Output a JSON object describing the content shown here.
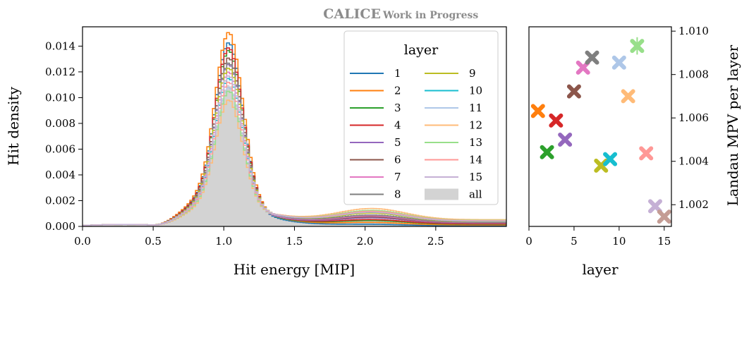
{
  "header": {
    "collab": "CALICE",
    "status": "Work in Progress"
  },
  "chart_data": [
    {
      "type": "histogram",
      "xlabel": "Hit energy [MIP]",
      "ylabel": "Hit density",
      "xlim": [
        0.0,
        3.0
      ],
      "ylim": [
        0.0,
        0.0155
      ],
      "xticks": [
        0.0,
        0.5,
        1.0,
        1.5,
        2.0,
        2.5
      ],
      "xtick_labels": [
        "0.0",
        "0.5",
        "1.0",
        "1.5",
        "2.0",
        "2.5"
      ],
      "yticks": [
        0.0,
        0.002,
        0.004,
        0.006,
        0.008,
        0.01,
        0.012,
        0.014
      ],
      "ytick_labels": [
        "0.000",
        "0.002",
        "0.004",
        "0.006",
        "0.008",
        "0.010",
        "0.012",
        "0.014"
      ],
      "legend": {
        "title": "layer",
        "placement": "top-right",
        "columns": 2,
        "all_label": "all"
      },
      "all": {
        "name": "all",
        "color": "#d3d3d3",
        "peak": 0.011,
        "high_level": 0.00055
      },
      "series": [
        {
          "name": "1",
          "color": "#1f77b4",
          "peak": 0.0143,
          "high_level": 0.0001
        },
        {
          "name": "2",
          "color": "#ff7f0e",
          "peak": 0.0151,
          "high_level": 0.0002
        },
        {
          "name": "3",
          "color": "#2ca02c",
          "peak": 0.0137,
          "high_level": 0.0003
        },
        {
          "name": "4",
          "color": "#d62728",
          "peak": 0.0139,
          "high_level": 0.00035
        },
        {
          "name": "5",
          "color": "#9467bd",
          "peak": 0.0126,
          "high_level": 0.00045
        },
        {
          "name": "6",
          "color": "#8c564b",
          "peak": 0.0131,
          "high_level": 0.0005
        },
        {
          "name": "7",
          "color": "#e377c2",
          "peak": 0.012,
          "high_level": 0.00055
        },
        {
          "name": "8",
          "color": "#7f7f7f",
          "peak": 0.0127,
          "high_level": 0.0006
        },
        {
          "name": "9",
          "color": "#bcbd22",
          "peak": 0.0123,
          "high_level": 0.0007
        },
        {
          "name": "10",
          "color": "#17becf",
          "peak": 0.0115,
          "high_level": 0.00075
        },
        {
          "name": "11",
          "color": "#aec7e8",
          "peak": 0.0108,
          "high_level": 0.0008
        },
        {
          "name": "12",
          "color": "#ffbb78",
          "peak": 0.0098,
          "high_level": 0.00095
        },
        {
          "name": "13",
          "color": "#98df8a",
          "peak": 0.0105,
          "high_level": 0.00085
        },
        {
          "name": "14",
          "color": "#ff9896",
          "peak": 0.0112,
          "high_level": 0.0008
        },
        {
          "name": "15",
          "color": "#c5b0d5",
          "peak": 0.0117,
          "high_level": 0.00075
        }
      ]
    },
    {
      "type": "scatter",
      "xlabel": "layer",
      "ylabel": "Landau MPV per layer",
      "xlim": [
        0,
        15.8
      ],
      "ylim": [
        1.001,
        1.0102
      ],
      "xticks": [
        0,
        5,
        10,
        15
      ],
      "xtick_labels": [
        "0",
        "5",
        "10",
        "15"
      ],
      "yticks": [
        1.002,
        1.004,
        1.006,
        1.008,
        1.01
      ],
      "ytick_labels": [
        "1.002",
        "1.004",
        "1.006",
        "1.008",
        "1.010"
      ],
      "points": [
        {
          "layer": 1,
          "mpv": 1.00632,
          "err": 8e-05,
          "color": "#ff7f0e"
        },
        {
          "layer": 2,
          "mpv": 1.00442,
          "err": 8e-05,
          "color": "#2ca02c"
        },
        {
          "layer": 3,
          "mpv": 1.00588,
          "err": 8e-05,
          "color": "#d62728"
        },
        {
          "layer": 4,
          "mpv": 1.005,
          "err": 8e-05,
          "color": "#9467bd"
        },
        {
          "layer": 5,
          "mpv": 1.00722,
          "err": 8e-05,
          "color": "#8c564b"
        },
        {
          "layer": 6,
          "mpv": 1.00832,
          "err": 0.0001,
          "color": "#e377c2"
        },
        {
          "layer": 7,
          "mpv": 1.00878,
          "err": 0.00015,
          "color": "#7f7f7f"
        },
        {
          "layer": 8,
          "mpv": 1.0038,
          "err": 8e-05,
          "color": "#bcbd22"
        },
        {
          "layer": 9,
          "mpv": 1.0041,
          "err": 8e-05,
          "color": "#17becf"
        },
        {
          "layer": 10,
          "mpv": 1.00855,
          "err": 0.0001,
          "color": "#aec7e8"
        },
        {
          "layer": 11,
          "mpv": 1.007,
          "err": 0.0001,
          "color": "#ffbb78"
        },
        {
          "layer": 12,
          "mpv": 1.00932,
          "err": 0.0004,
          "color": "#98df8a"
        },
        {
          "layer": 13,
          "mpv": 1.00437,
          "err": 8e-05,
          "color": "#ff9896"
        },
        {
          "layer": 14,
          "mpv": 1.00193,
          "err": 6e-05,
          "color": "#c5b0d5"
        },
        {
          "layer": 15,
          "mpv": 1.00145,
          "err": 6e-05,
          "color": "#c49c94"
        }
      ]
    }
  ]
}
